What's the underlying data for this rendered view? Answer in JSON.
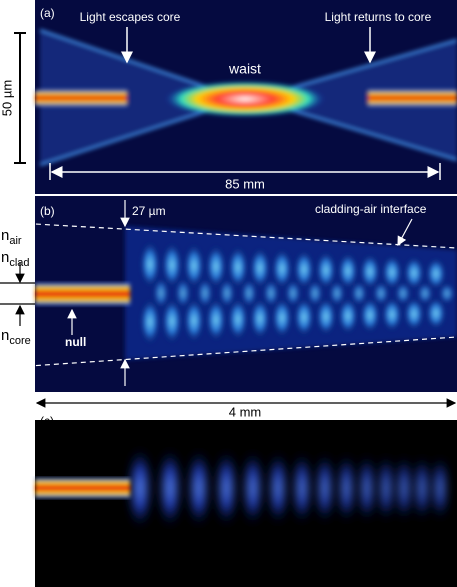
{
  "panel_a": {
    "label": "(a)",
    "left_annotation": "Light escapes core",
    "right_annotation": "Light returns to core",
    "waist": "waist",
    "scale_vertical": "50 µm",
    "scale_horizontal": "85 mm"
  },
  "panel_b": {
    "label": "(b)",
    "width_annotation": "27 µm",
    "interface": "cladding-air interface",
    "null": "null",
    "n_air": {
      "main": "n",
      "sub": "air"
    },
    "n_clad": {
      "main": "n",
      "sub": "clad"
    },
    "n_core": {
      "main": "n",
      "sub": "core"
    },
    "scale_horizontal": "4 mm"
  },
  "panel_c": {
    "label": "(c)"
  }
}
